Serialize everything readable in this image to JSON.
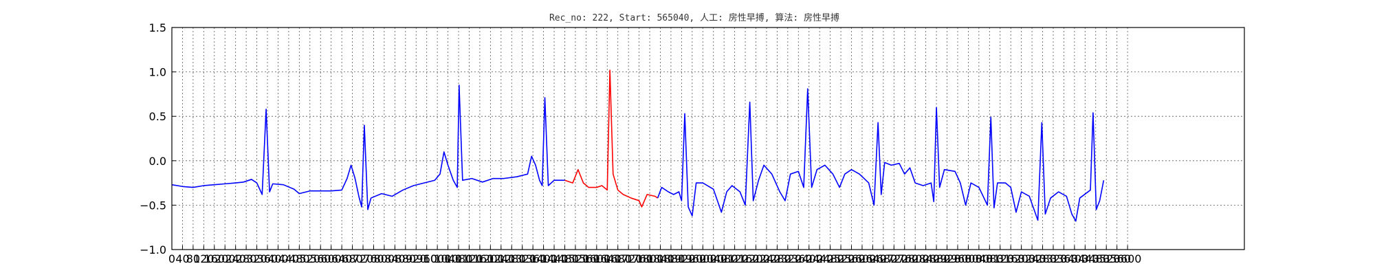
{
  "chart_data": {
    "type": "line",
    "title": "Rec_no: 222, Start: 565040, 人工: 房性早搏, 算法: 房性早搏",
    "xlabel": "",
    "ylabel": "",
    "xlim": [
      0,
      4040
    ],
    "ylim": [
      -1.0,
      1.5
    ],
    "yticks": [
      -1.0,
      -0.5,
      0.0,
      0.5,
      1.0,
      1.5
    ],
    "ytick_labels": [
      "−1.0",
      "−0.5",
      "0.0",
      "0.5",
      "1.0",
      "1.5"
    ],
    "xtick_step": 40,
    "xtick_max": 3600,
    "grid": true,
    "series": [
      {
        "color": "#0000ff",
        "points": [
          [
            0,
            -0.27
          ],
          [
            40,
            -0.29
          ],
          [
            80,
            -0.3
          ],
          [
            120,
            -0.28
          ],
          [
            160,
            -0.27
          ],
          [
            200,
            -0.26
          ],
          [
            240,
            -0.25
          ],
          [
            270,
            -0.24
          ],
          [
            300,
            -0.21
          ],
          [
            320,
            -0.25
          ],
          [
            340,
            -0.38
          ],
          [
            355,
            0.58
          ],
          [
            368,
            -0.35
          ],
          [
            380,
            -0.26
          ],
          [
            420,
            -0.27
          ],
          [
            460,
            -0.32
          ],
          [
            480,
            -0.37
          ],
          [
            520,
            -0.34
          ],
          [
            560,
            -0.34
          ],
          [
            600,
            -0.34
          ],
          [
            640,
            -0.33
          ],
          [
            660,
            -0.2
          ],
          [
            675,
            -0.05
          ],
          [
            690,
            -0.2
          ],
          [
            705,
            -0.41
          ],
          [
            715,
            -0.52
          ],
          [
            725,
            0.4
          ],
          [
            738,
            -0.55
          ],
          [
            750,
            -0.42
          ],
          [
            790,
            -0.37
          ],
          [
            830,
            -0.4
          ],
          [
            870,
            -0.33
          ],
          [
            910,
            -0.28
          ],
          [
            950,
            -0.25
          ],
          [
            990,
            -0.22
          ],
          [
            1010,
            -0.15
          ],
          [
            1025,
            0.1
          ],
          [
            1040,
            -0.05
          ],
          [
            1060,
            -0.22
          ],
          [
            1075,
            -0.3
          ],
          [
            1082,
            0.85
          ],
          [
            1095,
            -0.22
          ],
          [
            1130,
            -0.2
          ],
          [
            1170,
            -0.24
          ],
          [
            1210,
            -0.2
          ],
          [
            1250,
            -0.2
          ],
          [
            1300,
            -0.18
          ],
          [
            1340,
            -0.15
          ],
          [
            1355,
            0.05
          ],
          [
            1370,
            -0.05
          ],
          [
            1385,
            -0.22
          ],
          [
            1395,
            -0.28
          ],
          [
            1405,
            0.71
          ],
          [
            1418,
            -0.28
          ],
          [
            1440,
            -0.22
          ],
          [
            1480,
            -0.22
          ]
        ]
      },
      {
        "color": "#ff0000",
        "points": [
          [
            1480,
            -0.22
          ],
          [
            1510,
            -0.25
          ],
          [
            1530,
            -0.1
          ],
          [
            1550,
            -0.25
          ],
          [
            1570,
            -0.3
          ],
          [
            1600,
            -0.3
          ],
          [
            1620,
            -0.28
          ],
          [
            1640,
            -0.33
          ],
          [
            1650,
            1.02
          ],
          [
            1662,
            -0.15
          ],
          [
            1680,
            -0.33
          ],
          [
            1700,
            -0.38
          ],
          [
            1730,
            -0.42
          ],
          [
            1760,
            -0.45
          ],
          [
            1770,
            -0.52
          ],
          [
            1790,
            -0.38
          ],
          [
            1820,
            -0.4
          ],
          [
            1830,
            -0.42
          ]
        ]
      },
      {
        "color": "#0000ff",
        "points": [
          [
            1830,
            -0.42
          ],
          [
            1845,
            -0.3
          ],
          [
            1870,
            -0.35
          ],
          [
            1890,
            -0.38
          ],
          [
            1910,
            -0.35
          ],
          [
            1920,
            -0.45
          ],
          [
            1932,
            0.53
          ],
          [
            1945,
            -0.52
          ],
          [
            1960,
            -0.62
          ],
          [
            1975,
            -0.25
          ],
          [
            2000,
            -0.25
          ],
          [
            2040,
            -0.32
          ],
          [
            2070,
            -0.58
          ],
          [
            2090,
            -0.35
          ],
          [
            2110,
            -0.28
          ],
          [
            2140,
            -0.35
          ],
          [
            2160,
            -0.5
          ],
          [
            2177,
            0.66
          ],
          [
            2190,
            -0.45
          ],
          [
            2210,
            -0.22
          ],
          [
            2230,
            -0.05
          ],
          [
            2260,
            -0.15
          ],
          [
            2290,
            -0.35
          ],
          [
            2310,
            -0.45
          ],
          [
            2330,
            -0.15
          ],
          [
            2360,
            -0.12
          ],
          [
            2380,
            -0.3
          ],
          [
            2395,
            0.81
          ],
          [
            2410,
            -0.3
          ],
          [
            2430,
            -0.1
          ],
          [
            2460,
            -0.05
          ],
          [
            2490,
            -0.15
          ],
          [
            2515,
            -0.3
          ],
          [
            2535,
            -0.15
          ],
          [
            2560,
            -0.1
          ],
          [
            2590,
            -0.15
          ],
          [
            2625,
            -0.25
          ],
          [
            2645,
            -0.5
          ],
          [
            2660,
            0.43
          ],
          [
            2672,
            -0.38
          ],
          [
            2685,
            -0.02
          ],
          [
            2710,
            -0.05
          ],
          [
            2740,
            -0.03
          ],
          [
            2760,
            -0.15
          ],
          [
            2780,
            -0.08
          ],
          [
            2800,
            -0.25
          ],
          [
            2830,
            -0.28
          ],
          [
            2860,
            -0.25
          ],
          [
            2870,
            -0.46
          ],
          [
            2880,
            0.6
          ],
          [
            2892,
            -0.3
          ],
          [
            2910,
            -0.1
          ],
          [
            2950,
            -0.12
          ],
          [
            2970,
            -0.25
          ],
          [
            2990,
            -0.5
          ],
          [
            3010,
            -0.25
          ],
          [
            3040,
            -0.3
          ],
          [
            3072,
            -0.5
          ],
          [
            3085,
            0.49
          ],
          [
            3097,
            -0.53
          ],
          [
            3110,
            -0.25
          ],
          [
            3140,
            -0.25
          ],
          [
            3160,
            -0.3
          ],
          [
            3180,
            -0.58
          ],
          [
            3200,
            -0.35
          ],
          [
            3230,
            -0.4
          ],
          [
            3262,
            -0.67
          ],
          [
            3277,
            0.43
          ],
          [
            3290,
            -0.6
          ],
          [
            3310,
            -0.42
          ],
          [
            3340,
            -0.35
          ],
          [
            3370,
            -0.4
          ],
          [
            3390,
            -0.6
          ],
          [
            3405,
            -0.68
          ],
          [
            3420,
            -0.42
          ],
          [
            3460,
            -0.33
          ],
          [
            3470,
            0.54
          ],
          [
            3482,
            -0.55
          ],
          [
            3495,
            -0.45
          ],
          [
            3510,
            -0.22
          ]
        ]
      }
    ]
  }
}
